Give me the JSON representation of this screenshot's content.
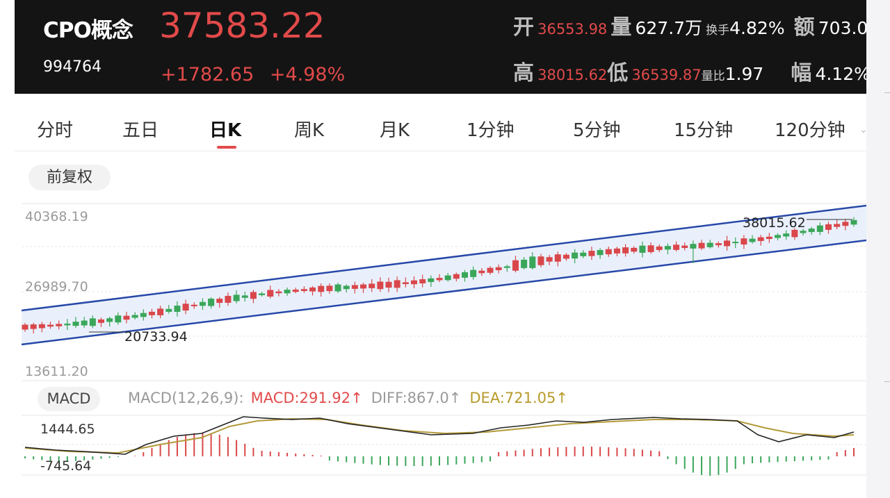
{
  "header": {
    "name": "CPO概念",
    "code": "994764",
    "price": "37583.22",
    "change": "+1782.65",
    "change_pct": "+4.98%",
    "stats": {
      "open_label": "开",
      "open_value": "36553.98",
      "volume_label": "量",
      "volume_value": "627.7万",
      "turnover_label": "换手",
      "turnover_value": "4.82%",
      "amount_label": "额",
      "amount_value": "703.0",
      "high_label": "高",
      "high_value": "38015.62",
      "low_label": "低",
      "low_value": "36539.87",
      "ratio_label": "量比",
      "ratio_value": "1.97",
      "amplitude_label": "幅",
      "amplitude_value": "4.12%"
    }
  },
  "tabs": [
    "分时",
    "五日",
    "日K",
    "周K",
    "月K",
    "1分钟",
    "5分钟",
    "15分钟",
    "120分钟"
  ],
  "active_tab": "日K",
  "adjust_button": "前复权",
  "price_axis": [
    "40368.19",
    "26989.70",
    "13611.20"
  ],
  "price_markers": {
    "high": "38015.62",
    "low": "20733.94"
  },
  "macd": {
    "button": "MACD",
    "params": "MACD(12,26,9):",
    "macd": "MACD:291.92↑",
    "diff": "DIFF:867.0↑",
    "dea": "DEA:721.05↑",
    "axis_top": "1444.65",
    "axis_bottom": "-745.64"
  },
  "colors": {
    "up": "#d9474b",
    "down": "#3aa659",
    "channel": "#2748a8",
    "diff_line": "#222222",
    "dea_line": "#b39a3a",
    "header_bg": "#141414"
  }
}
